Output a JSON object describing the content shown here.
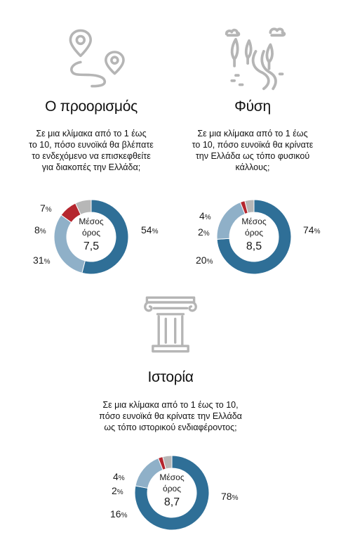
{
  "colors": {
    "blue": "#2f6f97",
    "lightblue": "#8fb0c8",
    "red": "#b5262e",
    "gray": "#b7b7b7",
    "icon": "#b5b5b5",
    "text": "#111111"
  },
  "icons": [
    "map-route-icon",
    "nature-landscape-icon",
    "ionic-column-icon"
  ],
  "center_label_line1": "Μέσος",
  "center_label_line2": "όρος",
  "percent_sign": "%",
  "chart_data": [
    {
      "type": "pie",
      "title": "Ο προορισμός",
      "question_lines": [
        "Σε μια κλίμακα από το 1 έως",
        "το 10, πόσο ευνοϊκά θα βλέπατε",
        "το ενδεχόμενο να επισκεφθείτε",
        "για διακοπές την Ελλάδα;"
      ],
      "mean": "7,5",
      "slices": [
        {
          "value": 54,
          "color": "#2f6f97"
        },
        {
          "value": 31,
          "color": "#8fb0c8"
        },
        {
          "value": 8,
          "color": "#b5262e"
        },
        {
          "value": 7,
          "color": "#b7b7b7"
        }
      ]
    },
    {
      "type": "pie",
      "title": "Φύση",
      "question_lines": [
        "Σε μια κλίμακα από το 1 έως",
        "το 10, πόσο ευνοϊκά θα κρίνατε",
        "την Ελλάδα ως τόπο φυσικού",
        "κάλλους;"
      ],
      "mean": "8,5",
      "slices": [
        {
          "value": 74,
          "color": "#2f6f97"
        },
        {
          "value": 20,
          "color": "#8fb0c8"
        },
        {
          "value": 2,
          "color": "#b5262e"
        },
        {
          "value": 4,
          "color": "#b7b7b7"
        }
      ]
    },
    {
      "type": "pie",
      "title": "Ιστορία",
      "question_lines": [
        "Σε μια κλίμακα από το 1 έως το 10,",
        "πόσο ευνοϊκά θα κρίνατε την Ελλάδα",
        "ως τόπο ιστορικού ενδιαφέροντος;"
      ],
      "mean": "8,7",
      "slices": [
        {
          "value": 78,
          "color": "#2f6f97"
        },
        {
          "value": 16,
          "color": "#8fb0c8"
        },
        {
          "value": 2,
          "color": "#b5262e"
        },
        {
          "value": 4,
          "color": "#b7b7b7"
        }
      ]
    }
  ]
}
